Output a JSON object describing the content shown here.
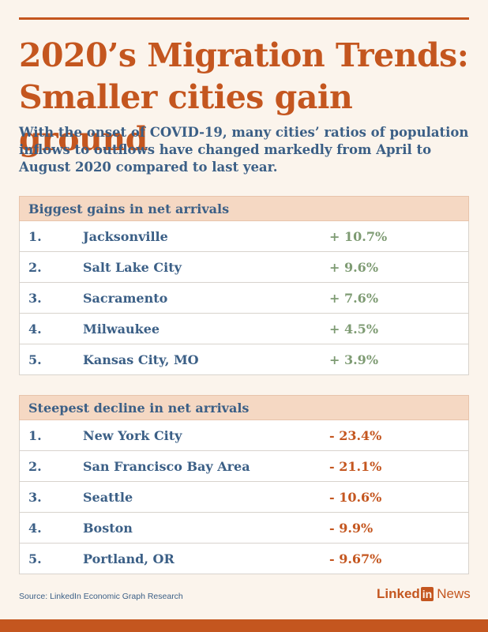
{
  "title": "2020’s Migration Trends: Smaller cities gain ground",
  "subtitle": "With the onset of COVID-19, many cities’ ratios of population inflows to outflows have changed markedly from April to August 2020 compared to last year.",
  "chart_data": [
    {
      "type": "table",
      "title": "Biggest gains in net arrivals",
      "rows": [
        {
          "rank": "1.",
          "city": "Jacksonville",
          "value": "+ 10.7%"
        },
        {
          "rank": "2.",
          "city": "Salt Lake City",
          "value": "+ 9.6%"
        },
        {
          "rank": "3.",
          "city": "Sacramento",
          "value": "+ 7.6%"
        },
        {
          "rank": "4.",
          "city": "Milwaukee",
          "value": "+ 4.5%"
        },
        {
          "rank": "5.",
          "city": "Kansas City, MO",
          "value": "+ 3.9%"
        }
      ]
    },
    {
      "type": "table",
      "title": "Steepest decline in net arrivals",
      "rows": [
        {
          "rank": "1.",
          "city": "New York City",
          "value": "- 23.4%"
        },
        {
          "rank": "2.",
          "city": "San Francisco Bay Area",
          "value": "- 21.1%"
        },
        {
          "rank": "3.",
          "city": "Seattle",
          "value": "- 10.6%"
        },
        {
          "rank": "4.",
          "city": "Boston",
          "value": "- 9.9%"
        },
        {
          "rank": "5.",
          "city": "Portland, OR",
          "value": "- 9.67%"
        }
      ]
    }
  ],
  "source": "Source: LinkedIn Economic Graph Research",
  "logo": {
    "linked": "Linked",
    "in": "in",
    "news": "News"
  },
  "colors": {
    "accent": "#c4561f",
    "text": "#3b5f86",
    "positive": "#7e9b73",
    "background": "#fbf4ec",
    "header": "#f5d8c3"
  }
}
